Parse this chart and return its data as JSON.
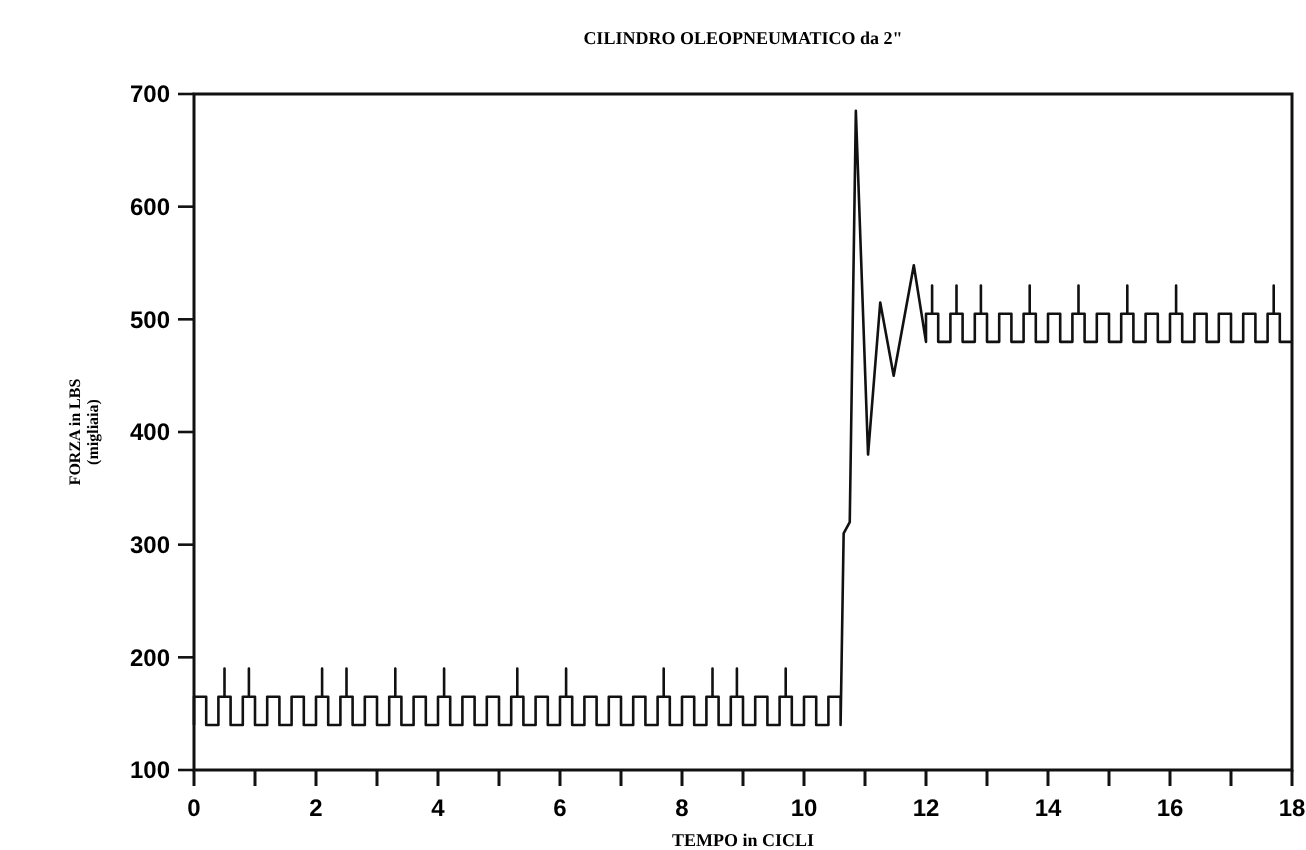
{
  "chart_data": {
    "type": "line",
    "title": "CILINDRO OLEOPNEUMATICO da 2\"",
    "xlabel": "TEMPO in CICLI",
    "ylabel": "FORZA in LBS\n(migliaia)",
    "xlim": [
      0,
      18
    ],
    "xticks": [
      0,
      {
        "value": 1,
        "label": null
      },
      2,
      {
        "value": 3,
        "label": null
      },
      4,
      {
        "value": 5,
        "label": null
      },
      6,
      {
        "value": 7,
        "label": null
      },
      8,
      {
        "value": 9,
        "label": null
      },
      10,
      {
        "value": 11,
        "label": null
      },
      12,
      {
        "value": 13,
        "label": null
      },
      14,
      {
        "value": 15,
        "label": null
      },
      16,
      {
        "value": 17,
        "label": null
      },
      18
    ],
    "ylim": [
      100,
      700
    ],
    "yticks": [
      100,
      200,
      300,
      400,
      500,
      600,
      700
    ],
    "grid": false,
    "marker": "none",
    "line_style": "solid",
    "series": [
      {
        "color": "#111111",
        "x": [
          0,
          0,
          0.2,
          0.2,
          0.4,
          0.4,
          0.5,
          0.5,
          0.5,
          0.6,
          0.6,
          0.8,
          0.8,
          0.9,
          0.9,
          0.9,
          1.0,
          1.0,
          1.2,
          1.2,
          1.4,
          1.4,
          1.6,
          1.6,
          1.8,
          1.8,
          2.0,
          2.0,
          2.1,
          2.1,
          2.1,
          2.2,
          2.2,
          2.4,
          2.4,
          2.5,
          2.5,
          2.5,
          2.6,
          2.6,
          2.8,
          2.8,
          3.0,
          3.0,
          3.2,
          3.2,
          3.3,
          3.3,
          3.3,
          3.4,
          3.4,
          3.6,
          3.6,
          3.8,
          3.8,
          4.0,
          4.0,
          4.1,
          4.1,
          4.1,
          4.2,
          4.2,
          4.4,
          4.4,
          4.6,
          4.6,
          4.8,
          4.8,
          5.0,
          5.0,
          5.2,
          5.2,
          5.3,
          5.3,
          5.3,
          5.4,
          5.4,
          5.6,
          5.6,
          5.8,
          5.8,
          6.0,
          6.0,
          6.1,
          6.1,
          6.1,
          6.2,
          6.2,
          6.4,
          6.4,
          6.6,
          6.6,
          6.8,
          6.8,
          7.0,
          7.0,
          7.2,
          7.2,
          7.4,
          7.4,
          7.6,
          7.6,
          7.7,
          7.7,
          7.7,
          7.8,
          7.8,
          8.0,
          8.0,
          8.2,
          8.2,
          8.4,
          8.4,
          8.5,
          8.5,
          8.5,
          8.6,
          8.6,
          8.8,
          8.8,
          8.9,
          8.9,
          8.9,
          9.0,
          9.0,
          9.2,
          9.2,
          9.4,
          9.4,
          9.6,
          9.6,
          9.7,
          9.7,
          9.7,
          9.8,
          9.8,
          10.0,
          10.0,
          10.2,
          10.2,
          10.4,
          10.4,
          10.6,
          10.6,
          10.65,
          10.75,
          10.85,
          11.05,
          11.25,
          11.47,
          11.8,
          12.0,
          12.0,
          12.1,
          12.1,
          12.1,
          12.2,
          12.2,
          12.4,
          12.4,
          12.5,
          12.5,
          12.5,
          12.6,
          12.6,
          12.8,
          12.8,
          12.9,
          12.9,
          12.9,
          13.0,
          13.0,
          13.2,
          13.2,
          13.4,
          13.4,
          13.6,
          13.6,
          13.7,
          13.7,
          13.7,
          13.8,
          13.8,
          14.0,
          14.0,
          14.2,
          14.2,
          14.4,
          14.4,
          14.5,
          14.5,
          14.5,
          14.6,
          14.6,
          14.8,
          14.8,
          15.0,
          15.0,
          15.2,
          15.2,
          15.3,
          15.3,
          15.3,
          15.4,
          15.4,
          15.6,
          15.6,
          15.8,
          15.8,
          16.0,
          16.0,
          16.1,
          16.1,
          16.1,
          16.2,
          16.2,
          16.4,
          16.4,
          16.6,
          16.6,
          16.8,
          16.8,
          17.0,
          17.0,
          17.2,
          17.2,
          17.4,
          17.4,
          17.6,
          17.6,
          17.7,
          17.7,
          17.7,
          17.8,
          17.8,
          18.0
        ],
        "values": [
          140,
          165,
          165,
          140,
          140,
          165,
          165,
          190,
          165,
          165,
          140,
          140,
          165,
          165,
          190,
          165,
          165,
          140,
          140,
          165,
          165,
          140,
          140,
          165,
          165,
          140,
          140,
          165,
          165,
          190,
          165,
          165,
          140,
          140,
          165,
          165,
          190,
          165,
          165,
          140,
          140,
          165,
          165,
          140,
          140,
          165,
          165,
          190,
          165,
          165,
          140,
          140,
          165,
          165,
          140,
          140,
          165,
          165,
          190,
          165,
          165,
          140,
          140,
          165,
          165,
          140,
          140,
          165,
          165,
          140,
          140,
          165,
          165,
          190,
          165,
          165,
          140,
          140,
          165,
          165,
          140,
          140,
          165,
          165,
          190,
          165,
          165,
          140,
          140,
          165,
          165,
          140,
          140,
          165,
          165,
          140,
          140,
          165,
          165,
          140,
          140,
          165,
          165,
          190,
          165,
          165,
          140,
          140,
          165,
          165,
          140,
          140,
          165,
          165,
          190,
          165,
          165,
          140,
          140,
          165,
          165,
          190,
          165,
          165,
          140,
          140,
          165,
          165,
          140,
          140,
          165,
          165,
          190,
          165,
          165,
          140,
          140,
          165,
          165,
          140,
          140,
          165,
          165,
          140,
          310,
          320,
          685,
          380,
          515,
          450,
          548,
          480,
          505,
          505,
          530,
          505,
          505,
          480,
          480,
          505,
          505,
          530,
          505,
          505,
          480,
          480,
          505,
          505,
          530,
          505,
          505,
          480,
          480,
          505,
          505,
          480,
          480,
          505,
          505,
          530,
          505,
          505,
          480,
          480,
          505,
          505,
          480,
          480,
          505,
          505,
          530,
          505,
          505,
          480,
          480,
          505,
          505,
          480,
          480,
          505,
          505,
          530,
          505,
          505,
          480,
          480,
          505,
          505,
          480,
          480,
          505,
          505,
          530,
          505,
          505,
          480,
          480,
          505,
          505,
          480,
          480,
          505,
          505,
          480,
          480,
          505,
          505,
          480,
          480,
          505,
          505,
          530,
          505,
          505,
          480,
          480
        ]
      }
    ]
  }
}
